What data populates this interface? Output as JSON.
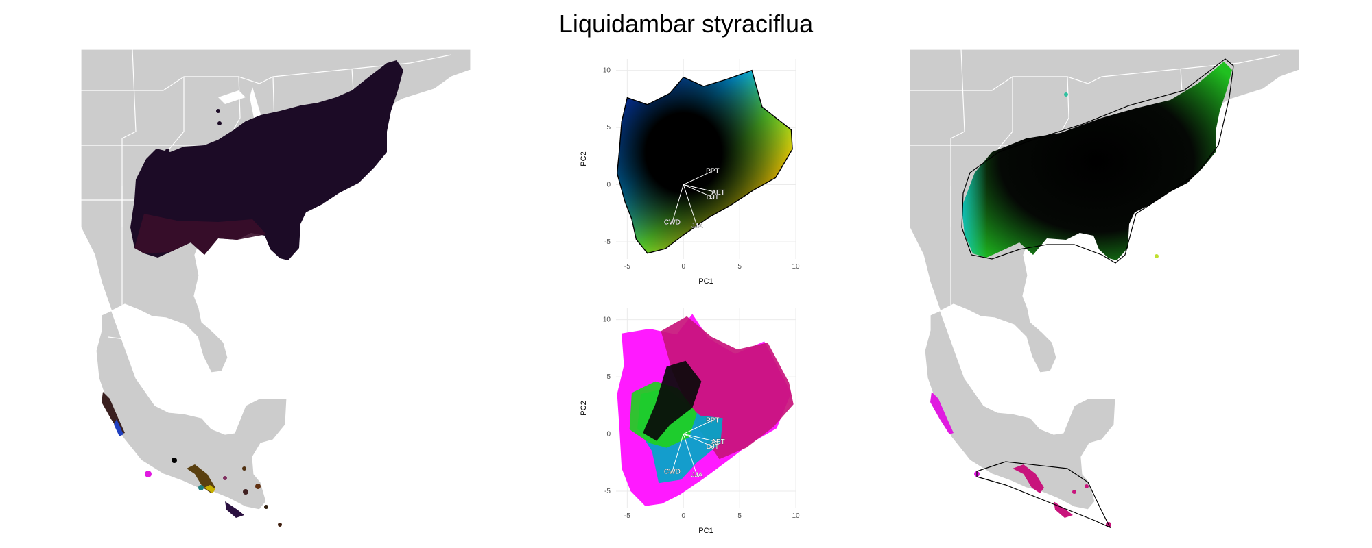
{
  "figure": {
    "title": "Liquidambar styraciflua"
  },
  "colors": {
    "land": "#cccccc",
    "borders": "#ffffff",
    "range_dark": "#1a0a24",
    "grid": "#ebebeb",
    "arrow": "#ffffff"
  },
  "panels": {
    "map_left": {
      "kind": "map",
      "range_coloring": "multivariate climate color (mostly dark)"
    },
    "map_right": {
      "kind": "map",
      "range_coloring": "distance-based color with convex boundary"
    }
  },
  "chart_data": [
    {
      "type": "scatter",
      "panel": "pca-top",
      "xlabel": "PC1",
      "ylabel": "PC2",
      "xlim": [
        -6,
        10
      ],
      "ylim": [
        -6.5,
        11
      ],
      "xticks": [
        -5,
        0,
        5,
        10
      ],
      "yticks": [
        -5,
        0,
        5,
        10
      ],
      "grid": true,
      "vectors": [
        {
          "label": "PPT",
          "x": 2.6,
          "y": 1.2
        },
        {
          "label": "AET",
          "x": 3.1,
          "y": -0.7
        },
        {
          "label": "DJT",
          "x": 2.6,
          "y": -1.1
        },
        {
          "label": "CWD",
          "x": -1.0,
          "y": -3.3
        },
        {
          "label": "JJA",
          "x": 1.2,
          "y": -3.6
        }
      ],
      "hull": [
        [
          -5,
          7.6
        ],
        [
          -3.2,
          7.0
        ],
        [
          -1.2,
          8.0
        ],
        [
          0,
          9.4
        ],
        [
          1.8,
          8.6
        ],
        [
          3.8,
          9.2
        ],
        [
          6.1,
          10.0
        ],
        [
          7.0,
          6.8
        ],
        [
          9.6,
          4.8
        ],
        [
          9.7,
          3.1
        ],
        [
          8.2,
          0.6
        ],
        [
          6.2,
          -0.5
        ],
        [
          4.2,
          -1.8
        ],
        [
          2.2,
          -2.9
        ],
        [
          0.0,
          -4.4
        ],
        [
          -1.6,
          -5.6
        ],
        [
          -3.2,
          -6.0
        ],
        [
          -4.2,
          -4.8
        ],
        [
          -4.6,
          -3.0
        ],
        [
          -5.2,
          -1.5
        ],
        [
          -5.9,
          1.0
        ],
        [
          -5.7,
          3.0
        ],
        [
          -5.5,
          5.5
        ]
      ]
    },
    {
      "type": "scatter",
      "panel": "pca-bottom",
      "xlabel": "PC1",
      "ylabel": "PC2",
      "xlim": [
        -6,
        10
      ],
      "ylim": [
        -6.5,
        11
      ],
      "xticks": [
        -5,
        0,
        5,
        10
      ],
      "yticks": [
        -5,
        0,
        5,
        10
      ],
      "grid": true,
      "vectors": [
        {
          "label": "PPT",
          "x": 2.6,
          "y": 1.2
        },
        {
          "label": "AET",
          "x": 3.1,
          "y": -0.7
        },
        {
          "label": "DJT",
          "x": 2.6,
          "y": -1.1
        },
        {
          "label": "CWD",
          "x": -1.0,
          "y": -3.3
        },
        {
          "label": "JJA",
          "x": 1.2,
          "y": -3.6
        }
      ],
      "series": [
        {
          "color": "#ff1aff",
          "hull": [
            [
              -5.5,
              8.8
            ],
            [
              -3.0,
              9.2
            ],
            [
              -0.6,
              8.7
            ],
            [
              0.8,
              10.5
            ],
            [
              2.2,
              8.4
            ],
            [
              4.6,
              7.0
            ],
            [
              7.2,
              8.1
            ],
            [
              9.6,
              3.6
            ],
            [
              8.3,
              0.5
            ],
            [
              6.0,
              -0.8
            ],
            [
              4.0,
              -2.3
            ],
            [
              1.8,
              -3.9
            ],
            [
              -0.3,
              -5.3
            ],
            [
              -1.9,
              -6.1
            ],
            [
              -3.4,
              -6.3
            ],
            [
              -4.7,
              -5.0
            ],
            [
              -5.5,
              -3.0
            ],
            [
              -5.7,
              0.5
            ],
            [
              -5.9,
              3.5
            ],
            [
              -5.3,
              6.0
            ]
          ]
        },
        {
          "color": "#c8147c",
          "hull": [
            [
              -2.0,
              9.0
            ],
            [
              0.3,
              10.3
            ],
            [
              2.5,
              8.5
            ],
            [
              4.8,
              7.4
            ],
            [
              7.5,
              8.0
            ],
            [
              9.4,
              4.5
            ],
            [
              9.8,
              2.6
            ],
            [
              8.0,
              0.6
            ],
            [
              5.6,
              -1.2
            ],
            [
              3.2,
              -2.2
            ],
            [
              1.0,
              1.0
            ],
            [
              -1.0,
              5.5
            ]
          ]
        },
        {
          "color": "#00a8c8",
          "hull": [
            [
              -3.8,
              3.5
            ],
            [
              -1.5,
              4.0
            ],
            [
              1.5,
              1.6
            ],
            [
              3.5,
              1.4
            ],
            [
              3.3,
              -0.8
            ],
            [
              1.2,
              -2.5
            ],
            [
              -0.2,
              -4.0
            ],
            [
              -2.2,
              -4.3
            ],
            [
              -2.8,
              -1.5
            ],
            [
              -4.1,
              0.5
            ]
          ]
        },
        {
          "color": "#20d020",
          "hull": [
            [
              -4.6,
              3.6
            ],
            [
              -2.5,
              4.6
            ],
            [
              -0.5,
              4.0
            ],
            [
              1.2,
              1.8
            ],
            [
              0.5,
              -0.3
            ],
            [
              -1.5,
              -1.2
            ],
            [
              -3.0,
              -0.8
            ],
            [
              -4.8,
              0.4
            ]
          ]
        },
        {
          "color": "#0a0a0a",
          "hull": [
            [
              -1.5,
              5.9
            ],
            [
              0.2,
              6.4
            ],
            [
              1.6,
              4.6
            ],
            [
              0.8,
              2.3
            ],
            [
              -1.2,
              0.8
            ],
            [
              -2.4,
              -0.6
            ],
            [
              -3.6,
              0.1
            ],
            [
              -2.5,
              2.6
            ]
          ]
        }
      ]
    }
  ]
}
